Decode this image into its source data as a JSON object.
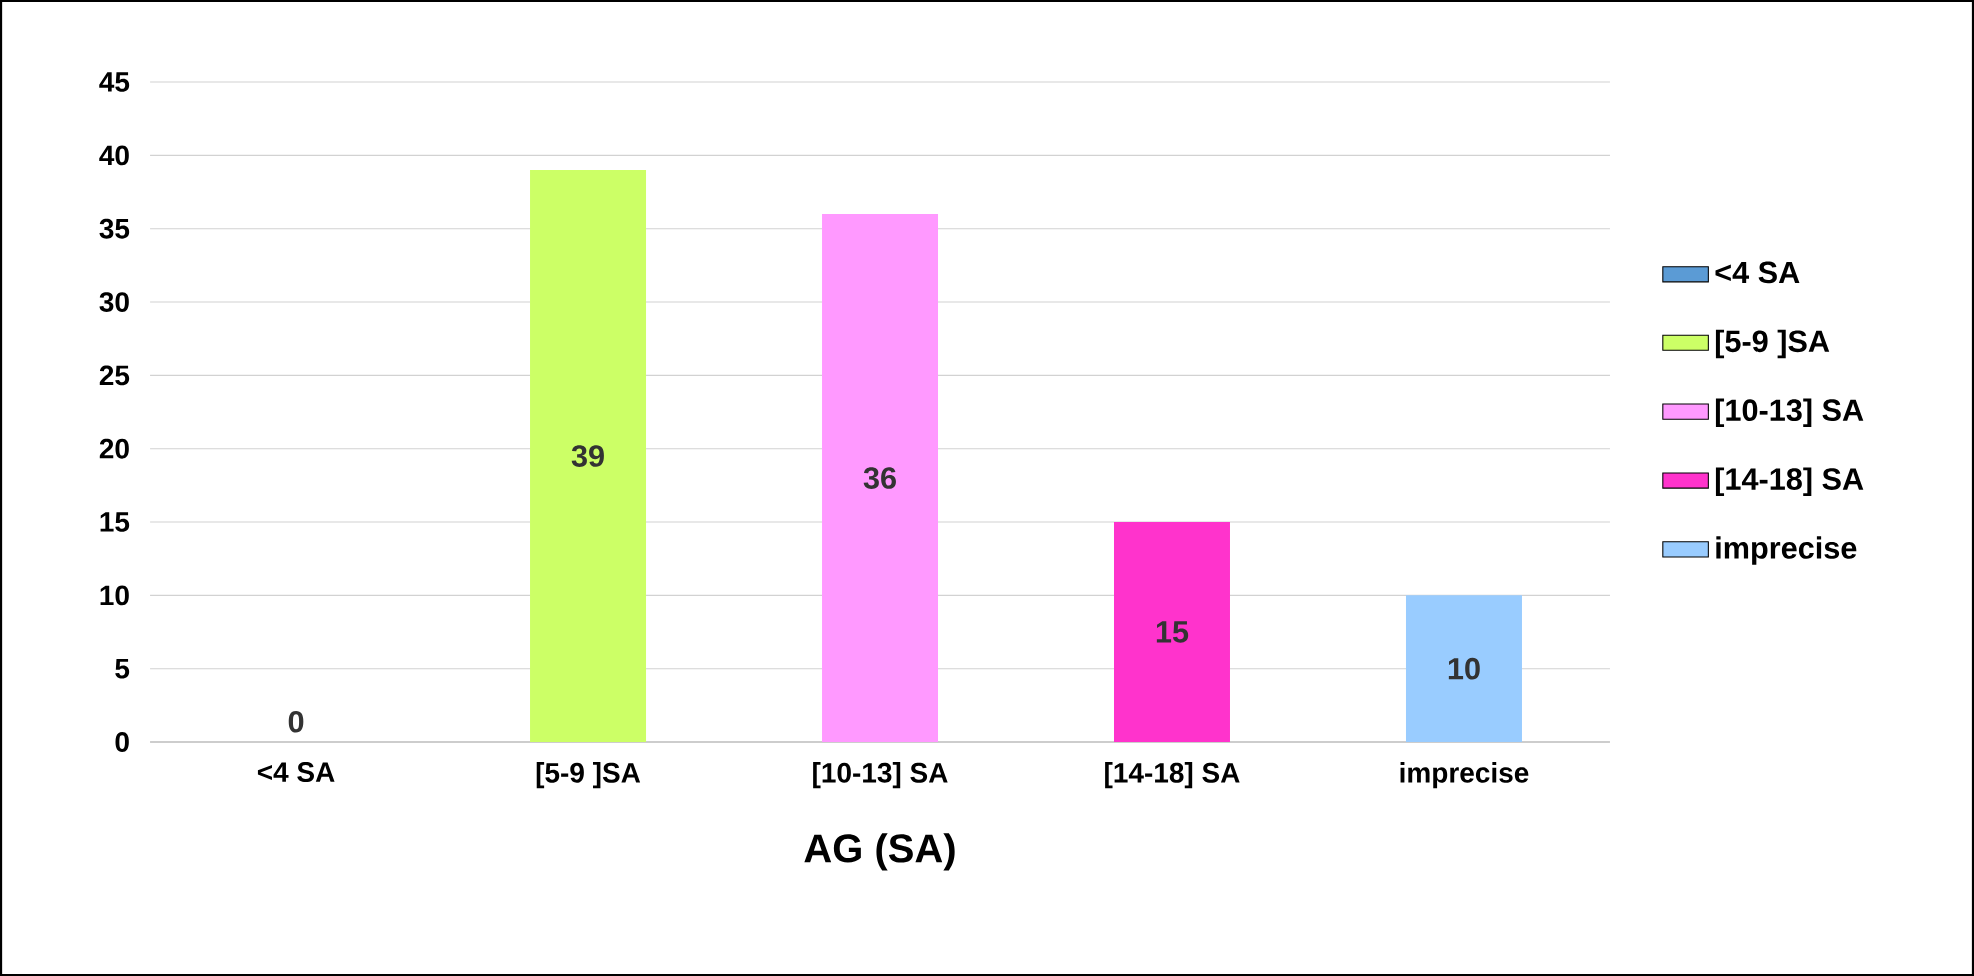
{
  "chart_data": {
    "type": "bar",
    "xlabel": "AG (SA)",
    "categories": [
      "<4 SA",
      "[5-9 ]SA",
      "[10-13] SA",
      "[14-18] SA",
      "imprecise"
    ],
    "series": [
      {
        "name": "<4 SA",
        "color": "#5b9bd5",
        "values": [
          0,
          null,
          null,
          null,
          null
        ]
      },
      {
        "name": "[5-9 ]SA",
        "color": "#ccff66",
        "values": [
          null,
          39,
          null,
          null,
          null
        ]
      },
      {
        "name": "[10-13] SA",
        "color": "#ff99ff",
        "values": [
          null,
          null,
          36,
          null,
          null
        ]
      },
      {
        "name": "[14-18] SA",
        "color": "#ff33cc",
        "values": [
          null,
          null,
          null,
          15,
          null
        ]
      },
      {
        "name": "imprecise",
        "color": "#99ccff",
        "values": [
          null,
          null,
          null,
          null,
          10
        ]
      }
    ],
    "ylim": [
      0,
      45
    ],
    "yticks": [
      0,
      5,
      10,
      15,
      20,
      25,
      30,
      35,
      40,
      45
    ],
    "grid": "y",
    "legend": "right",
    "data_labels": true
  }
}
